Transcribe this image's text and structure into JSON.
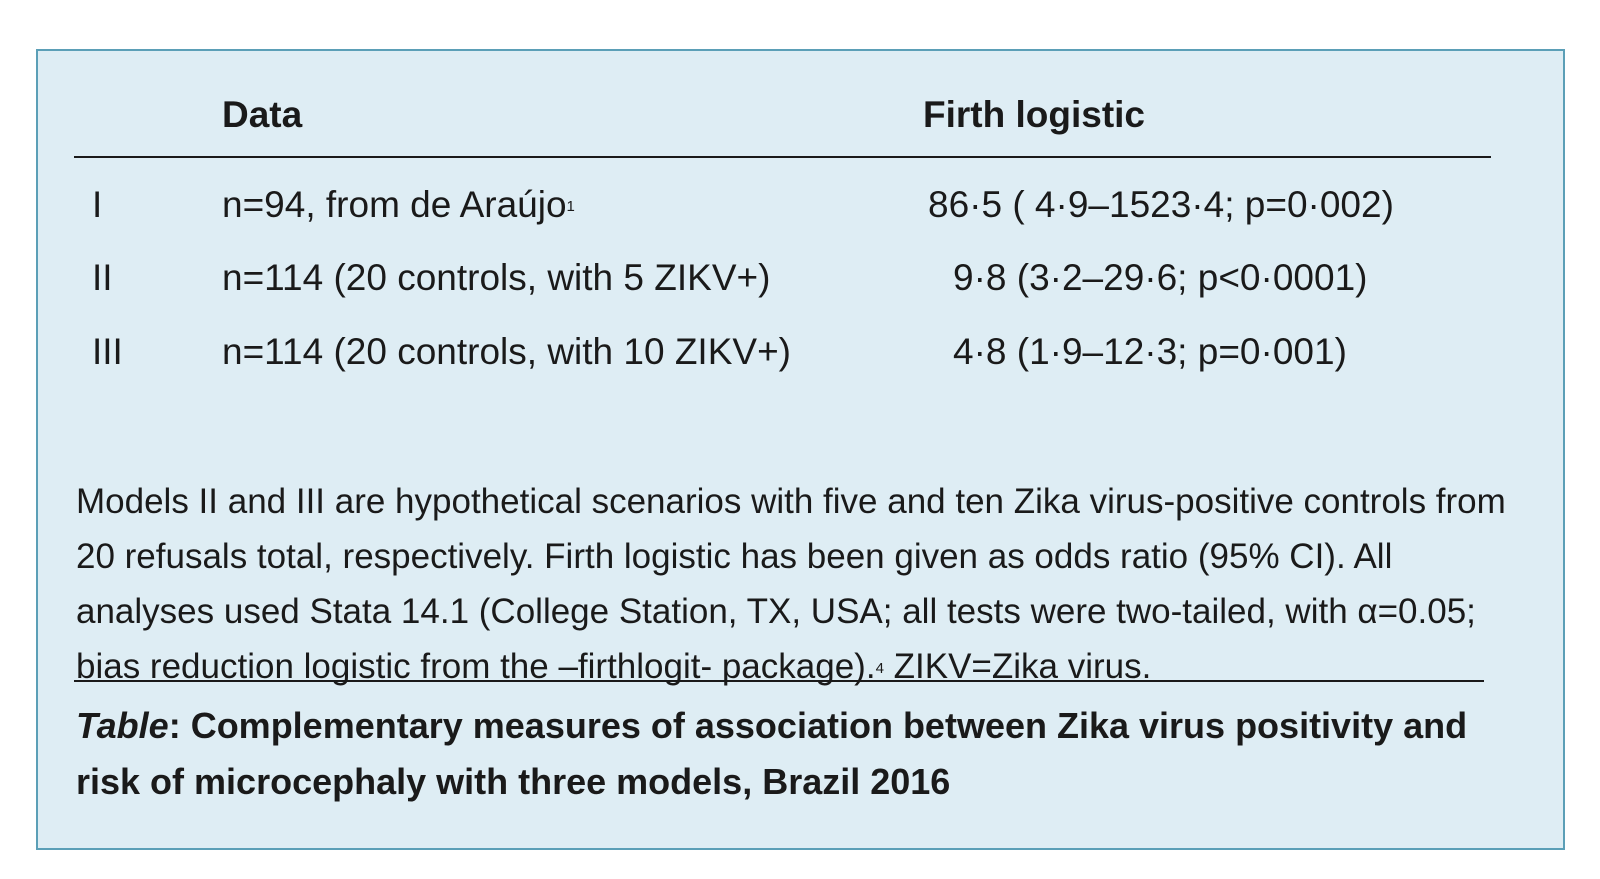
{
  "table": {
    "headers": {
      "data": "Data",
      "firth": "Firth logistic"
    },
    "rows": [
      {
        "model": "I",
        "data": "n=94, from de Araújo",
        "data_ref": "1",
        "firth": "86·5 ( 4·9–1523·4; p=0·002)"
      },
      {
        "model": "II",
        "data": "n=114 (20 controls, with 5 ZIKV+)",
        "data_ref": "",
        "firth": "9·8 (3·2–29·6; p<0·0001)"
      },
      {
        "model": "III",
        "data": "n=114 (20 controls, with 10 ZIKV+)",
        "data_ref": "",
        "firth": "4·8 (1·9–12·3; p=0·001)"
      }
    ]
  },
  "footnote": {
    "text_before_ref": "Models II and III are hypothetical scenarios with five and ten Zika virus-positive controls from 20 refusals total, respectively. Firth logistic has been given as odds ratio (95% CI). All analyses used Stata 14.1 (College Station, TX, USA; all tests were two-tailed, with α=0.05; bias reduction logistic from the –firthlogit- package).",
    "ref": "4",
    "text_after_ref": " ZIKV=Zika virus."
  },
  "caption": {
    "lead": "Table",
    "text": ": Complementary measures of association between Zika virus positivity and risk of microcephaly with three models, Brazil 2016"
  },
  "colors": {
    "panel_background": "#deedf4",
    "panel_border": "#5b9fb7",
    "text": "#1a1a1a"
  }
}
